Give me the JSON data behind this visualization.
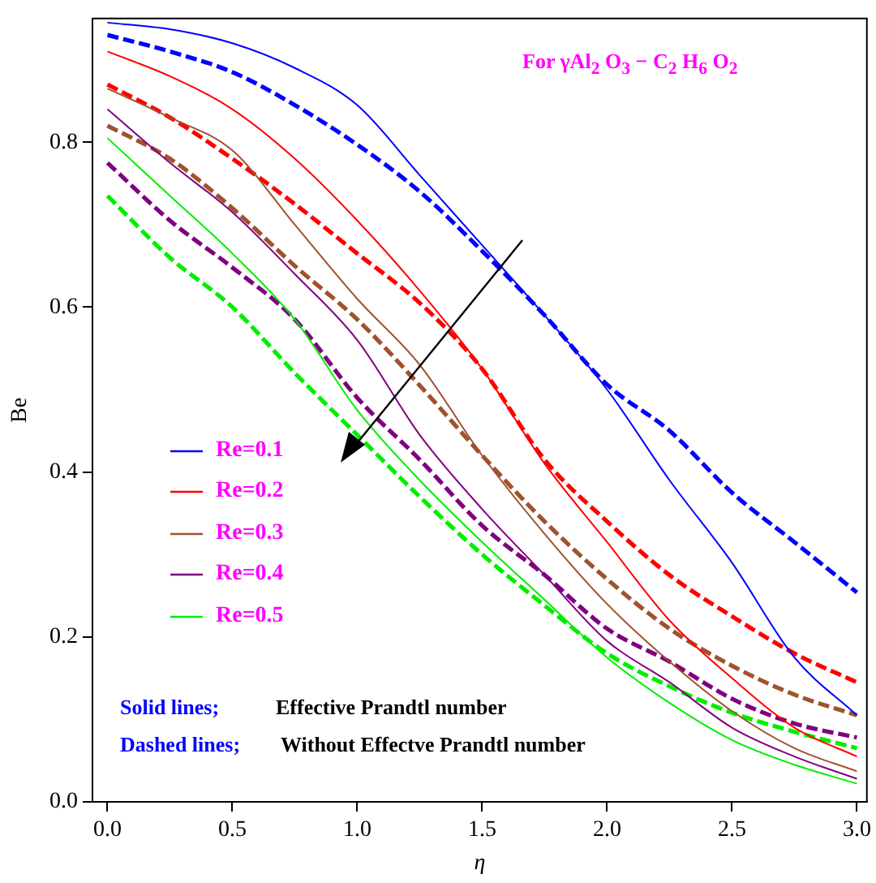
{
  "chart_data": {
    "type": "line",
    "xlabel": "η",
    "ylabel": "Be",
    "x": [
      0,
      0.25,
      0.5,
      0.75,
      1.0,
      1.25,
      1.5,
      1.75,
      2.0,
      2.25,
      2.5,
      2.75,
      3.0
    ],
    "series": [
      {
        "name": "Re=0.1",
        "color": "#0000ff",
        "line_style": "solid",
        "values": [
          0.945,
          0.937,
          0.92,
          0.89,
          0.845,
          0.76,
          0.675,
          0.59,
          0.5,
          0.39,
          0.29,
          0.175,
          0.105
        ]
      },
      {
        "name": "Re=0.2",
        "color": "#ff0000",
        "line_style": "solid",
        "values": [
          0.91,
          0.88,
          0.84,
          0.78,
          0.705,
          0.62,
          0.525,
          0.41,
          0.315,
          0.22,
          0.15,
          0.09,
          0.055
        ]
      },
      {
        "name": "Re=0.3",
        "color": "#a0522d",
        "line_style": "solid",
        "values": [
          0.865,
          0.83,
          0.79,
          0.7,
          0.61,
          0.53,
          0.42,
          0.325,
          0.24,
          0.17,
          0.11,
          0.065,
          0.037
        ]
      },
      {
        "name": "Re=0.4",
        "color": "#800080",
        "line_style": "solid",
        "values": [
          0.84,
          0.775,
          0.715,
          0.64,
          0.56,
          0.445,
          0.355,
          0.275,
          0.195,
          0.145,
          0.09,
          0.055,
          0.028
        ]
      },
      {
        "name": "Re=0.5",
        "color": "#00ee00",
        "line_style": "solid",
        "values": [
          0.805,
          0.735,
          0.665,
          0.585,
          0.475,
          0.39,
          0.315,
          0.245,
          0.175,
          0.12,
          0.075,
          0.045,
          0.022
        ]
      },
      {
        "color": "#0000ff",
        "line_style": "dashed",
        "values": [
          0.93,
          0.91,
          0.885,
          0.845,
          0.797,
          0.74,
          0.668,
          0.59,
          0.506,
          0.45,
          0.375,
          0.315,
          0.254
        ]
      },
      {
        "color": "#ff0000",
        "line_style": "dashed",
        "values": [
          0.87,
          0.83,
          0.78,
          0.725,
          0.665,
          0.605,
          0.525,
          0.415,
          0.34,
          0.275,
          0.225,
          0.18,
          0.145
        ]
      },
      {
        "color": "#a0522d",
        "line_style": "dashed",
        "values": [
          0.82,
          0.78,
          0.72,
          0.65,
          0.585,
          0.505,
          0.42,
          0.34,
          0.27,
          0.21,
          0.165,
          0.13,
          0.105
        ]
      },
      {
        "color": "#800080",
        "line_style": "dashed",
        "values": [
          0.775,
          0.705,
          0.648,
          0.585,
          0.49,
          0.415,
          0.335,
          0.275,
          0.21,
          0.17,
          0.125,
          0.095,
          0.078
        ]
      },
      {
        "color": "#00ee00",
        "line_style": "dashed",
        "values": [
          0.735,
          0.66,
          0.6,
          0.52,
          0.445,
          0.37,
          0.3,
          0.238,
          0.18,
          0.14,
          0.108,
          0.085,
          0.065
        ]
      }
    ],
    "xlim": [
      -0.06,
      3.04
    ],
    "ylim": [
      0,
      0.95
    ],
    "xticks": [
      {
        "value": 0,
        "label": "0.0"
      },
      {
        "value": 0.5,
        "label": "0.5"
      },
      {
        "value": 1,
        "label": "1.0"
      },
      {
        "value": 1.5,
        "label": "1.5"
      },
      {
        "value": 2,
        "label": "2.0"
      },
      {
        "value": 2.5,
        "label": "2.5"
      },
      {
        "value": 3,
        "label": "3.0"
      }
    ],
    "yticks": [
      {
        "value": 0,
        "label": "0.0"
      },
      {
        "value": 0.2,
        "label": "0.2"
      },
      {
        "value": 0.4,
        "label": "0.4"
      },
      {
        "value": 0.6,
        "label": "0.6"
      },
      {
        "value": 0.8,
        "label": "0.8"
      }
    ],
    "grid": false,
    "legend": "left",
    "marker": "none",
    "annotations": [
      "For γAl$_{2}$ O$_{3}$ − C$_{2}$ H$_{6}$ O$_{2}$",
      "Solid lines;",
      "Effective Prandtl number",
      "Dashed lines;",
      "Without Effectve Prandtl number"
    ]
  }
}
